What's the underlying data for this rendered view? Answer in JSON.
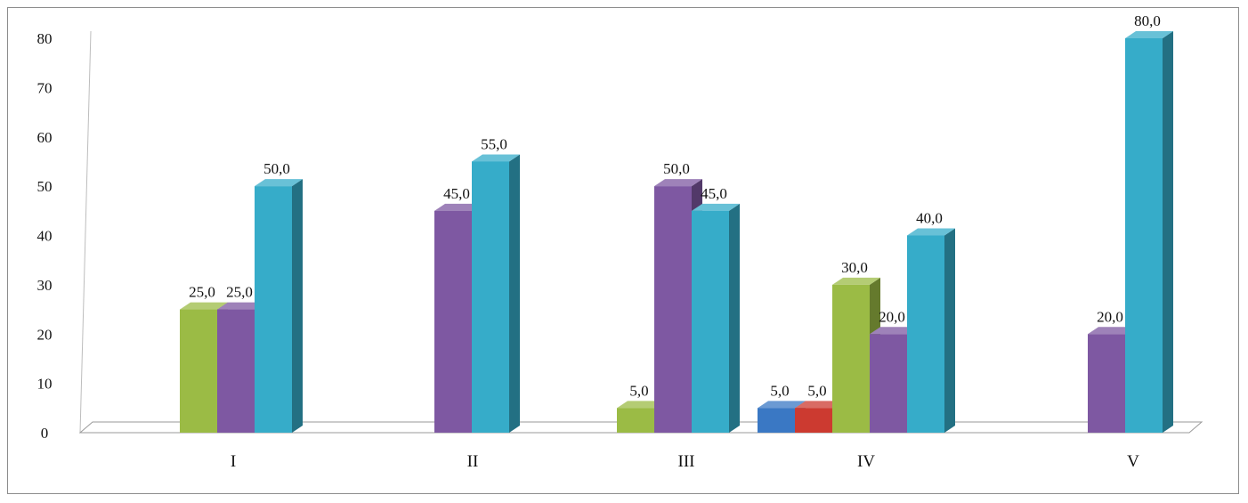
{
  "chart_data": {
    "type": "bar",
    "title": "",
    "xlabel": "",
    "ylabel": "",
    "ylim": [
      0,
      80
    ],
    "yticks": [
      "0",
      "10",
      "20",
      "30",
      "40",
      "50",
      "60",
      "70",
      "80"
    ],
    "categories": [
      "I",
      "II",
      "III",
      "IV",
      "V"
    ],
    "grid": false,
    "legend": "none",
    "style": "3d-clustered-column",
    "series": [
      {
        "color": "#3a78c4",
        "values": [
          null,
          null,
          null,
          5.0,
          null
        ],
        "labels": [
          null,
          null,
          null,
          "5,0",
          null
        ]
      },
      {
        "color": "#cc3a30",
        "values": [
          null,
          null,
          null,
          5.0,
          null
        ],
        "labels": [
          null,
          null,
          null,
          "5,0",
          null
        ]
      },
      {
        "color": "#9bbb45",
        "values": [
          25.0,
          null,
          5.0,
          30.0,
          null
        ],
        "labels": [
          "25,0",
          null,
          "5,0",
          "30,0",
          null
        ]
      },
      {
        "color": "#7e58a2",
        "values": [
          25.0,
          45.0,
          50.0,
          20.0,
          20.0
        ],
        "labels": [
          "25,0",
          "45,0",
          "50,0",
          "20,0",
          "20,0"
        ]
      },
      {
        "color": "#36acc9",
        "values": [
          50.0,
          55.0,
          45.0,
          40.0,
          80.0
        ],
        "labels": [
          "50,0",
          "55,0",
          "45,0",
          "40,0",
          "80,0"
        ]
      }
    ]
  }
}
